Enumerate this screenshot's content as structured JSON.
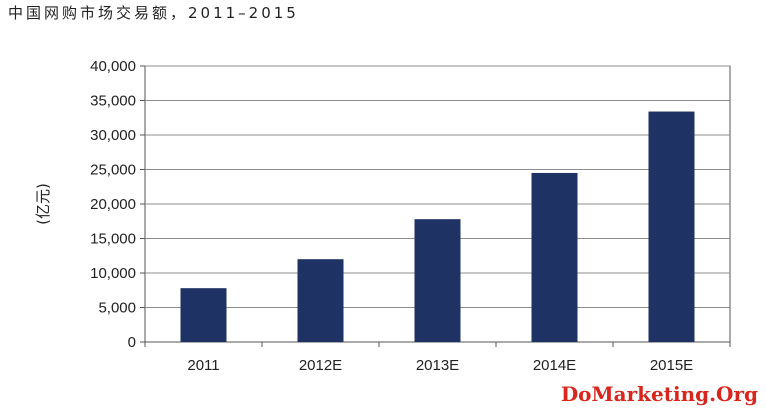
{
  "title": "中国网购市场交易额，2011–2015",
  "watermark": "DoMarketing.Org",
  "colors": {
    "bar": "#1f3264",
    "grid": "#8c8c8c",
    "axis": "#555555"
  },
  "chart_data": {
    "type": "bar",
    "title": "中国网购市场交易额，2011–2015",
    "categories": [
      "2011",
      "2012E",
      "2013E",
      "2014E",
      "2015E"
    ],
    "values": [
      7800,
      12000,
      17800,
      24500,
      33400
    ],
    "ylabel": "(亿元)",
    "xlabel": "",
    "ylim": [
      0,
      40000
    ],
    "yticks": [
      0,
      5000,
      10000,
      15000,
      20000,
      25000,
      30000,
      35000,
      40000
    ],
    "ytick_labels": [
      "0",
      "5,000",
      "10,000",
      "15,000",
      "20,000",
      "25,000",
      "30,000",
      "35,000",
      "40,000"
    ],
    "grid": true,
    "legend": "none"
  }
}
